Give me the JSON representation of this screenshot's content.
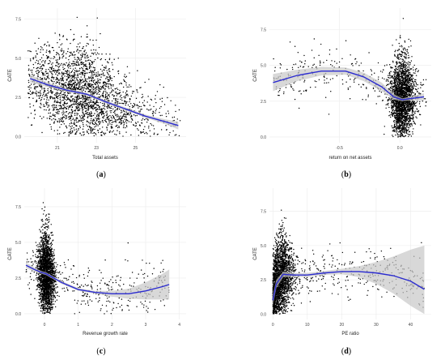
{
  "chart_data": [
    {
      "type": "scatter",
      "panel": "a",
      "panel_label": "a",
      "xlabel": "Total assets",
      "ylabel": "CATE",
      "xlim": [
        19.3,
        27.6
      ],
      "ylim": [
        -0.4,
        8.2
      ],
      "xticks": [
        "21",
        "23",
        "25"
      ],
      "xtick_values": [
        21,
        23,
        25
      ],
      "yticks": [
        "0.0",
        "2.5",
        "5.0",
        "7.5"
      ],
      "ytick_values": [
        0,
        2.5,
        5,
        7.5
      ],
      "points_summary": {
        "count": 2600,
        "x_center": 22.2,
        "x_spread": 1.5,
        "x_range": [
          19.5,
          27.3
        ],
        "y_range": [
          0,
          8
        ]
      },
      "fit": {
        "x": [
          19.6,
          20.5,
          21.5,
          22.5,
          23.5,
          24.5,
          25.5,
          26.5,
          27.2
        ],
        "y": [
          3.7,
          3.3,
          2.95,
          2.7,
          2.2,
          1.75,
          1.3,
          0.95,
          0.7
        ]
      },
      "band": {
        "upper": [
          3.95,
          3.45,
          3.05,
          2.8,
          2.3,
          1.85,
          1.4,
          1.1,
          0.95
        ],
        "lower": [
          3.45,
          3.15,
          2.85,
          2.6,
          2.1,
          1.65,
          1.2,
          0.8,
          0.45
        ]
      },
      "grid": true
    },
    {
      "type": "scatter",
      "panel": "b",
      "panel_label": "b",
      "xlabel": "return on net assets",
      "ylabel": "CATE",
      "xlim": [
        -1.08,
        0.26
      ],
      "ylim": [
        -0.4,
        9.0
      ],
      "xticks": [
        "-0.5",
        "0.0"
      ],
      "xtick_values": [
        -0.5,
        0
      ],
      "yticks": [
        "0.0",
        "2.5",
        "5.0",
        "7.5"
      ],
      "ytick_values": [
        0,
        2.5,
        5,
        7.5
      ],
      "points_summary": {
        "count": 2600,
        "x_center": 0.02,
        "x_spread": 0.05,
        "x_range": [
          -1.05,
          0.22
        ],
        "y_range": [
          0,
          8.8
        ]
      },
      "fit": {
        "x": [
          -1.05,
          -0.85,
          -0.65,
          -0.45,
          -0.3,
          -0.15,
          -0.05,
          0.02,
          0.1,
          0.2
        ],
        "y": [
          3.8,
          4.3,
          4.6,
          4.6,
          4.2,
          3.5,
          2.8,
          2.6,
          2.7,
          2.8
        ]
      },
      "band": {
        "upper": [
          4.4,
          4.7,
          4.9,
          4.85,
          4.5,
          3.8,
          3.0,
          2.7,
          2.85,
          3.05
        ],
        "lower": [
          3.2,
          3.9,
          4.3,
          4.35,
          3.9,
          3.2,
          2.6,
          2.5,
          2.55,
          2.55
        ]
      },
      "grid": true
    },
    {
      "type": "scatter",
      "panel": "c",
      "panel_label": "c",
      "xlabel": "Revenue growth rate",
      "ylabel": "CATE",
      "xlim": [
        -0.6,
        4.2
      ],
      "ylim": [
        -0.4,
        8.8
      ],
      "xticks": [
        "0",
        "1",
        "2",
        "3",
        "4"
      ],
      "xtick_values": [
        0,
        1,
        2,
        3,
        4
      ],
      "yticks": [
        "0.0",
        "2.5",
        "5.0",
        "7.5"
      ],
      "ytick_values": [
        0,
        2.5,
        5,
        7.5
      ],
      "points_summary": {
        "count": 2600,
        "x_center": 0.05,
        "x_spread": 0.12,
        "x_range": [
          -0.55,
          3.7
        ],
        "y_range": [
          0,
          8.4
        ]
      },
      "fit": {
        "x": [
          -0.55,
          -0.3,
          -0.1,
          0.05,
          0.2,
          0.5,
          1.0,
          1.5,
          2.0,
          2.5,
          3.0,
          3.5,
          3.7
        ],
        "y": [
          3.4,
          3.1,
          2.9,
          2.8,
          2.6,
          2.2,
          1.7,
          1.5,
          1.4,
          1.4,
          1.6,
          1.9,
          2.05
        ]
      },
      "band": {
        "upper": [
          3.6,
          3.25,
          3.0,
          2.9,
          2.7,
          2.3,
          1.8,
          1.6,
          1.6,
          1.75,
          2.2,
          2.8,
          3.1
        ],
        "lower": [
          3.2,
          2.95,
          2.8,
          2.7,
          2.5,
          2.1,
          1.6,
          1.4,
          1.2,
          1.05,
          1.0,
          1.0,
          1.0
        ]
      },
      "grid": true
    },
    {
      "type": "scatter",
      "panel": "d",
      "panel_label": "d",
      "xlabel": "PE ratio",
      "ylabel": "CATE",
      "xlim": [
        -1,
        46
      ],
      "ylim": [
        -0.4,
        9.2
      ],
      "xticks": [
        "0",
        "10",
        "20",
        "30",
        "40"
      ],
      "xtick_values": [
        0,
        10,
        20,
        30,
        40
      ],
      "yticks": [
        "0.0",
        "2.5",
        "5.0",
        "7.5"
      ],
      "ytick_values": [
        0,
        2.5,
        5,
        7.5
      ],
      "points_summary": {
        "count": 2600,
        "x_center": 2,
        "x_spread": 2,
        "x_range": [
          0,
          44
        ],
        "y_range": [
          0,
          9
        ]
      },
      "fit": {
        "x": [
          0,
          1,
          3,
          6,
          10,
          15,
          20,
          25,
          30,
          35,
          40,
          44
        ],
        "y": [
          1.0,
          2.2,
          2.9,
          2.85,
          2.85,
          3.0,
          3.1,
          3.1,
          3.0,
          2.8,
          2.4,
          1.8
        ]
      },
      "band": {
        "upper": [
          1.4,
          2.5,
          3.1,
          3.0,
          3.0,
          3.15,
          3.3,
          3.5,
          3.8,
          4.2,
          4.7,
          5.0
        ],
        "lower": [
          0.6,
          1.9,
          2.7,
          2.7,
          2.7,
          2.85,
          2.9,
          2.7,
          2.2,
          1.5,
          0.6,
          0.0
        ]
      },
      "grid": true
    }
  ],
  "colors": {
    "points": "#000000",
    "fit_line": "#2b2bcf",
    "band": "#c8c8c8",
    "grid": "#ebebeb"
  }
}
